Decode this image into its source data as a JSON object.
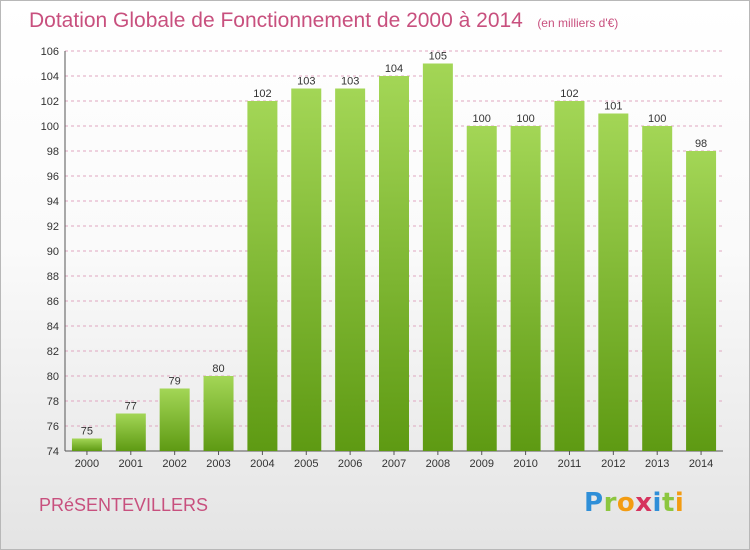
{
  "header": {
    "title": "Dotation Globale de Fonctionnement de 2000 à 2014",
    "subtitle": "(en milliers d'€)"
  },
  "commune": "PRéSENTEVILLERS",
  "logo": {
    "letters": [
      "P",
      "r",
      "o",
      "x",
      "i",
      "t",
      "i"
    ],
    "colors": [
      "#2f8fd8",
      "#8cc63f",
      "#f39c12",
      "#d6335e",
      "#2f8fd8",
      "#8cc63f",
      "#f39c12"
    ]
  },
  "colors": {
    "title": "#c8507e",
    "bar_top": "#a3d656",
    "bar_bottom": "#5e9a13",
    "grid": "#e0a6c0"
  },
  "chart_data": {
    "type": "bar",
    "categories": [
      "2000",
      "2001",
      "2002",
      "2003",
      "2004",
      "2005",
      "2006",
      "2007",
      "2008",
      "2009",
      "2010",
      "2011",
      "2012",
      "2013",
      "2014"
    ],
    "values": [
      75,
      77,
      79,
      80,
      102,
      103,
      103,
      104,
      105,
      100,
      100,
      102,
      101,
      100,
      98
    ],
    "title": "Dotation Globale de Fonctionnement de 2000 à 2014",
    "subtitle": "(en milliers d'€)",
    "xlabel": "",
    "ylabel": "",
    "ylim": [
      74,
      106
    ],
    "yticks": [
      74,
      76,
      78,
      80,
      82,
      84,
      86,
      88,
      90,
      92,
      94,
      96,
      98,
      100,
      102,
      104,
      106
    ],
    "grid": true,
    "legend": "none"
  }
}
